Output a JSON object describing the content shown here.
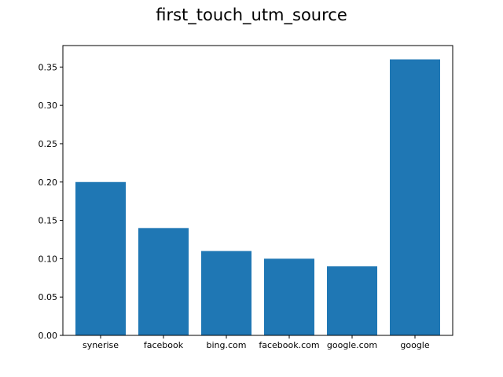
{
  "chart_data": {
    "type": "bar",
    "title": "first_touch_utm_source",
    "xlabel": "",
    "ylabel": "",
    "categories": [
      "synerise",
      "facebook",
      "bing.com",
      "facebook.com",
      "google.com",
      "google"
    ],
    "values": [
      0.2,
      0.14,
      0.11,
      0.1,
      0.09,
      0.36
    ],
    "ylim": [
      0,
      0.378
    ],
    "yticks": [
      "0.00",
      "0.05",
      "0.10",
      "0.15",
      "0.20",
      "0.25",
      "0.30",
      "0.35"
    ],
    "bar_color": "#1f77b4",
    "grid": false,
    "legend": "none"
  }
}
